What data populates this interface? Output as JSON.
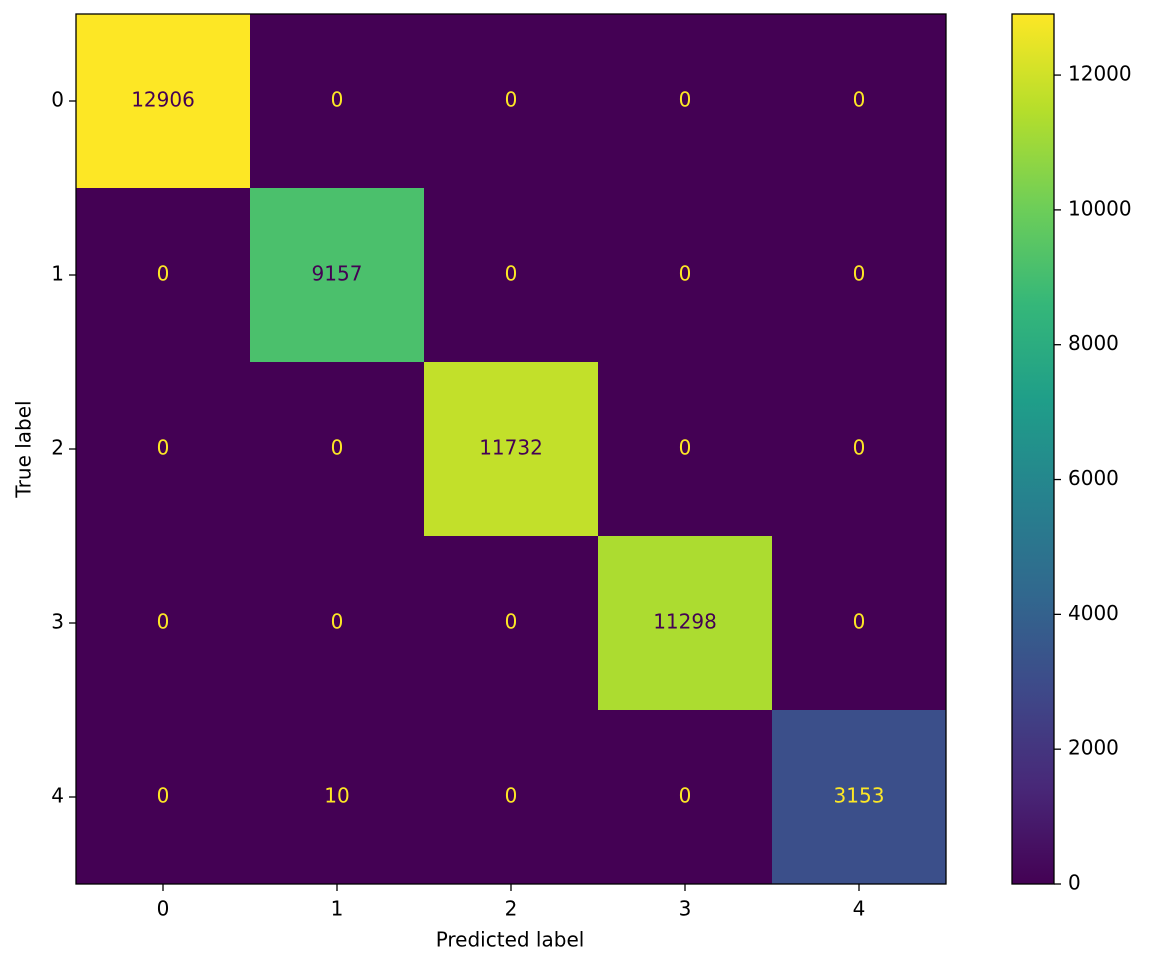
{
  "chart_data": {
    "type": "heatmap",
    "x_label": "Predicted label",
    "y_label": "True label",
    "x_categories": [
      "0",
      "1",
      "2",
      "3",
      "4"
    ],
    "y_categories": [
      "0",
      "1",
      "2",
      "3",
      "4"
    ],
    "values": [
      [
        12906,
        0,
        0,
        0,
        0
      ],
      [
        0,
        9157,
        0,
        0,
        0
      ],
      [
        0,
        0,
        11732,
        0,
        0
      ],
      [
        0,
        0,
        0,
        11298,
        0
      ],
      [
        0,
        10,
        0,
        0,
        3153
      ]
    ],
    "colormap": "viridis",
    "colorbar": {
      "lim": [
        0,
        12906
      ],
      "ticks": [
        0,
        2000,
        4000,
        6000,
        8000,
        10000,
        12000
      ]
    }
  }
}
